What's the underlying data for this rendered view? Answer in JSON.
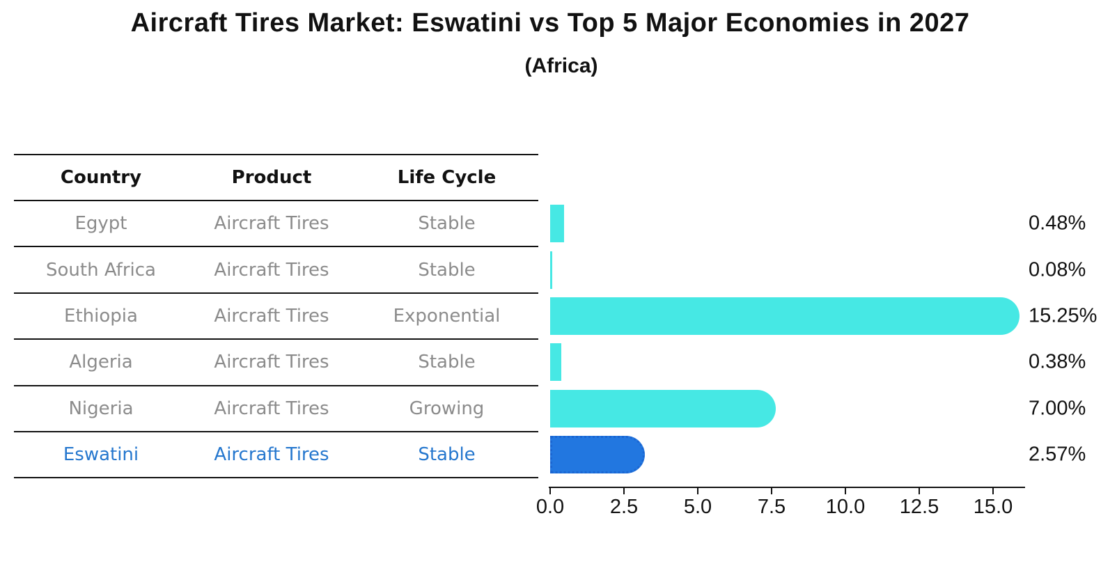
{
  "title": "Aircraft Tires Market: Eswatini vs Top 5 Major Economies in 2027",
  "subtitle": "(Africa)",
  "table": {
    "headers": [
      "Country",
      "Product",
      "Life Cycle"
    ],
    "rows": [
      {
        "country": "Egypt",
        "product": "Aircraft Tires",
        "life_cycle": "Stable",
        "highlight": false
      },
      {
        "country": "South Africa",
        "product": "Aircraft Tires",
        "life_cycle": "Stable",
        "highlight": false
      },
      {
        "country": "Ethiopia",
        "product": "Aircraft Tires",
        "life_cycle": "Exponential",
        "highlight": false
      },
      {
        "country": "Algeria",
        "product": "Aircraft Tires",
        "life_cycle": "Stable",
        "highlight": false
      },
      {
        "country": "Nigeria",
        "product": "Aircraft Tires",
        "life_cycle": "Growing",
        "highlight": false
      },
      {
        "country": "Eswatini",
        "product": "Aircraft Tires",
        "life_cycle": "Stable",
        "highlight": true
      }
    ]
  },
  "chart_data": {
    "type": "bar",
    "orientation": "horizontal",
    "title": "Aircraft Tires Market: Eswatini vs Top 5 Major Economies in 2027",
    "subtitle": "(Africa)",
    "categories": [
      "Egypt",
      "South Africa",
      "Ethiopia",
      "Algeria",
      "Nigeria",
      "Eswatini"
    ],
    "values": [
      0.48,
      0.08,
      15.25,
      0.38,
      7.0,
      2.57
    ],
    "value_labels": [
      "0.48%",
      "0.08%",
      "15.25%",
      "0.38%",
      "7.00%",
      "2.57%"
    ],
    "x_tick_values": [
      0,
      2.5,
      5,
      7.5,
      10,
      12.5,
      15
    ],
    "x_tick_labels": [
      "0.0",
      "2.5",
      "5.0",
      "7.5",
      "10.0",
      "12.5",
      "15.0"
    ],
    "xlim": [
      0,
      16.1
    ],
    "grid": false,
    "legend": "none",
    "bar_color": "#46e8e4",
    "highlight_color": "#2277e0",
    "highlight_border_color": "#1b66d2",
    "highlight_index": 5,
    "highlight_text_color": "#2577ce"
  }
}
